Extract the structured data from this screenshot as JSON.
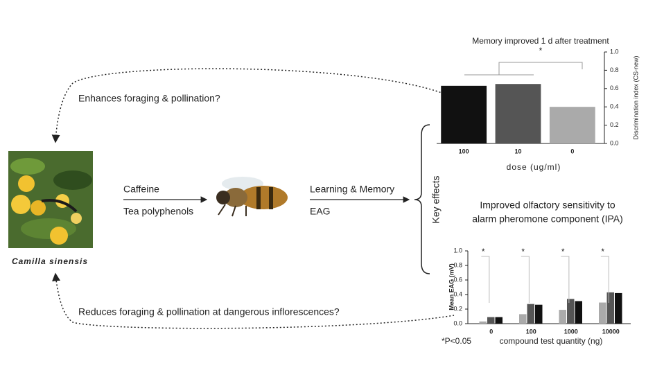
{
  "plant_label": "Camilla sinensis",
  "top_arrow": "Enhances foraging & pollination?",
  "bottom_arrow": "Reduces foraging & pollination at dangerous inflorescences?",
  "compounds": [
    "Caffeine",
    "Tea polyphenols"
  ],
  "effects": [
    "Learning & Memory",
    "EAG"
  ],
  "key_effects": "Key effects",
  "chart_data": [
    {
      "type": "bar",
      "title": "Memory improved 1 d after treatment",
      "categories": [
        "100",
        "10",
        "0"
      ],
      "values": [
        0.63,
        0.65,
        0.4
      ],
      "colors": [
        "#111111",
        "#555555",
        "#aaaaaa"
      ],
      "x_label": "dose (ug/ml)",
      "y_label": "Discrimination index (CS-new)",
      "ylim": [
        0,
        1
      ],
      "yticks": [
        {
          "value": 0,
          "label": "0.0"
        },
        {
          "value": 0.2,
          "label": "0.2"
        },
        {
          "value": 0.4,
          "label": "0.4"
        },
        {
          "value": 0.6,
          "label": "0.6"
        },
        {
          "value": 0.8,
          "label": "0.8"
        },
        {
          "value": 1,
          "label": "1.0"
        }
      ],
      "annotations": [
        "*"
      ]
    },
    {
      "type": "grouped-bar",
      "title": [
        "Improved olfactory sensitivity to",
        "alarm pheromone component (IPA)"
      ],
      "categories": [
        "0",
        "100",
        "1000",
        "10000"
      ],
      "series": [
        {
          "color": "#aaaaaa",
          "values": [
            0.03,
            0.13,
            0.19,
            0.29
          ]
        },
        {
          "color": "#555555",
          "values": [
            0.09,
            0.27,
            0.34,
            0.43
          ]
        },
        {
          "color": "#111111",
          "values": [
            0.09,
            0.26,
            0.31,
            0.42
          ]
        }
      ],
      "x_label": "compound test quantity (ng)",
      "y_label": "Mean EAG (mV)",
      "ylim": [
        0,
        1
      ],
      "yticks": [
        {
          "value": 0,
          "label": "0.0"
        },
        {
          "value": 0.2,
          "label": "0.2"
        },
        {
          "value": 0.4,
          "label": "0.4"
        },
        {
          "value": 0.6,
          "label": "0.6"
        },
        {
          "value": 0.8,
          "label": "0.8"
        },
        {
          "value": 1,
          "label": "1.0"
        }
      ],
      "annotations": [
        "*",
        "*",
        "*",
        "*",
        "*P<0.05"
      ]
    }
  ]
}
